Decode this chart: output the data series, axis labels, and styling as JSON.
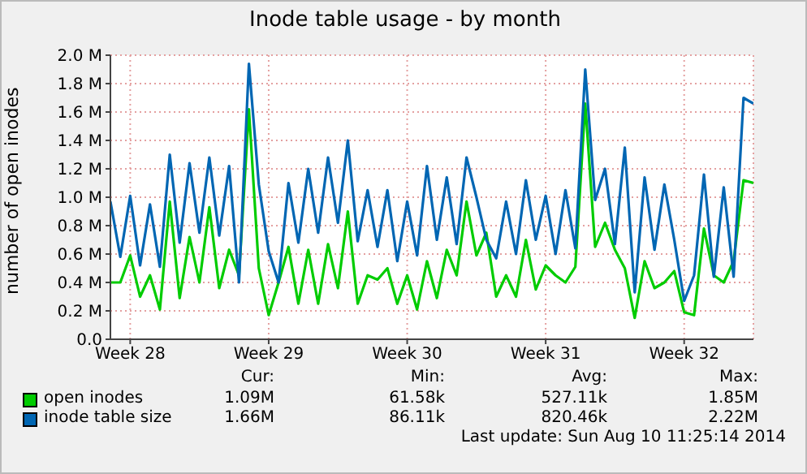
{
  "chart_data": {
    "type": "line",
    "title": "Inode table usage - by month",
    "ylabel": "number of open inodes",
    "categories": [
      null,
      null,
      "Week 28",
      null,
      null,
      null,
      null,
      null,
      null,
      null,
      null,
      null,
      null,
      null,
      null,
      null,
      "Week 29",
      null,
      null,
      null,
      null,
      null,
      null,
      null,
      null,
      null,
      null,
      null,
      null,
      null,
      "Week 30",
      null,
      null,
      null,
      null,
      null,
      null,
      null,
      null,
      null,
      null,
      null,
      null,
      null,
      "Week 31",
      null,
      null,
      null,
      null,
      null,
      null,
      null,
      null,
      null,
      null,
      null,
      null,
      null,
      "Week 32",
      null,
      null,
      null,
      null,
      null,
      null,
      null
    ],
    "ylim": [
      0,
      2.0
    ],
    "yticks": [
      {
        "value": 0,
        "label": "0.0"
      },
      {
        "value": 0.2,
        "label": "0.2 M"
      },
      {
        "value": 0.4,
        "label": "0.4 M"
      },
      {
        "value": 0.6,
        "label": "0.6 M"
      },
      {
        "value": 0.8,
        "label": "0.8 M"
      },
      {
        "value": 1.0,
        "label": "1.0 M"
      },
      {
        "value": 1.2,
        "label": "1.2 M"
      },
      {
        "value": 1.4,
        "label": "1.4 M"
      },
      {
        "value": 1.6,
        "label": "1.6 M"
      },
      {
        "value": 1.8,
        "label": "1.8 M"
      },
      {
        "value": 2.0,
        "label": "2.0 M"
      }
    ],
    "grid": true,
    "legend": "bottom",
    "marker": "none",
    "line_style": "solid",
    "series": [
      {
        "name": "open inodes",
        "color": "#00cc00",
        "values": [
          0.4,
          0.4,
          0.59,
          0.3,
          0.45,
          0.21,
          0.97,
          0.29,
          0.72,
          0.4,
          0.93,
          0.36,
          0.63,
          0.45,
          1.62,
          0.5,
          0.17,
          0.4,
          0.65,
          0.25,
          0.63,
          0.25,
          0.67,
          0.36,
          0.9,
          0.25,
          0.45,
          0.42,
          0.5,
          0.25,
          0.45,
          0.21,
          0.55,
          0.29,
          0.63,
          0.45,
          0.97,
          0.59,
          0.75,
          0.3,
          0.45,
          0.3,
          0.7,
          0.35,
          0.52,
          0.45,
          0.4,
          0.51,
          1.66,
          0.65,
          0.82,
          0.63,
          0.5,
          0.15,
          0.55,
          0.36,
          0.4,
          0.48,
          0.19,
          0.17,
          0.78,
          0.45,
          0.4,
          0.55,
          1.12,
          1.1
        ]
      },
      {
        "name": "inode table size",
        "color": "#0066b3",
        "values": [
          0.97,
          0.58,
          1.01,
          0.52,
          0.95,
          0.51,
          1.3,
          0.68,
          1.24,
          0.75,
          1.28,
          0.73,
          1.22,
          0.4,
          1.94,
          1.09,
          0.62,
          0.4,
          1.1,
          0.68,
          1.2,
          0.75,
          1.28,
          0.82,
          1.4,
          0.69,
          1.05,
          0.65,
          1.05,
          0.55,
          0.97,
          0.59,
          1.22,
          0.7,
          1.14,
          0.67,
          1.28,
          1.0,
          0.7,
          0.57,
          0.97,
          0.6,
          1.12,
          0.7,
          1.01,
          0.6,
          1.05,
          0.64,
          1.9,
          0.98,
          1.2,
          0.67,
          1.35,
          0.33,
          1.14,
          0.63,
          1.09,
          0.7,
          0.27,
          0.45,
          1.16,
          0.44,
          1.07,
          0.44,
          1.7,
          1.66
        ]
      }
    ],
    "annotations": [
      "Cur:",
      "Min:",
      "Avg:",
      "Max:",
      "1.09M",
      "61.58k",
      "527.11k",
      "1.85M",
      "1.66M",
      "86.11k",
      "820.46k",
      "2.22M",
      "Last update: Sun Aug 10 11:25:14 2014"
    ]
  }
}
